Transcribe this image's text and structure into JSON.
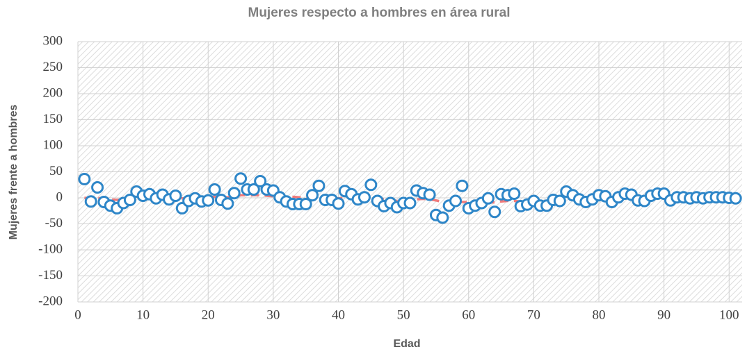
{
  "chart_data": {
    "type": "scatter",
    "title": "Mujeres respecto a hombres en área rural",
    "x_label": "Edad",
    "y_label": "Mujeres frente a hombres",
    "x": [
      1,
      2,
      3,
      4,
      5,
      6,
      7,
      8,
      9,
      10,
      11,
      12,
      13,
      14,
      15,
      16,
      17,
      18,
      19,
      20,
      21,
      22,
      23,
      24,
      25,
      26,
      27,
      28,
      29,
      30,
      31,
      32,
      33,
      34,
      35,
      36,
      37,
      38,
      39,
      40,
      41,
      42,
      43,
      44,
      45,
      46,
      47,
      48,
      49,
      50,
      51,
      52,
      53,
      54,
      55,
      56,
      57,
      58,
      59,
      60,
      61,
      62,
      63,
      64,
      65,
      66,
      67,
      68,
      69,
      70,
      71,
      72,
      73,
      74,
      75,
      76,
      77,
      78,
      79,
      80,
      81,
      82,
      83,
      84,
      85,
      86,
      87,
      88,
      89,
      90,
      91,
      92,
      93,
      94,
      95,
      96,
      97,
      98,
      99,
      100,
      101
    ],
    "series": [
      {
        "color": "#2e86c8",
        "values": [
          36,
          -7,
          20,
          -8,
          -15,
          -20,
          -10,
          -4,
          12,
          4,
          7,
          -1,
          6,
          -3,
          4,
          -20,
          -6,
          -1,
          -7,
          -5,
          16,
          -4,
          -11,
          9,
          37,
          16,
          16,
          32,
          16,
          14,
          1,
          -7,
          -12,
          -12,
          -12,
          5,
          23,
          -4,
          -4,
          -11,
          13,
          7,
          -3,
          1,
          25,
          -6,
          -16,
          -10,
          -18,
          -10,
          -10,
          14,
          9,
          6,
          -33,
          -38,
          -15,
          -6,
          23,
          -20,
          -15,
          -10,
          -1,
          -27,
          7,
          5,
          8,
          -16,
          -13,
          -6,
          -15,
          -15,
          -4,
          -6,
          12,
          5,
          -3,
          -8,
          -3,
          5,
          3,
          -8,
          1,
          8,
          6,
          -5,
          -6,
          4,
          8,
          8,
          -5,
          1,
          1,
          -1,
          1,
          -1,
          1,
          1,
          1,
          0,
          -1
        ]
      },
      {
        "color": "#f07a7a",
        "style": "dashed",
        "values": [
          0,
          -1,
          0,
          -2,
          -3,
          -4,
          -3,
          -2,
          -2,
          0,
          1,
          1,
          1,
          0,
          0,
          -1,
          -1,
          0,
          0,
          1,
          2,
          2,
          1,
          3,
          5,
          5,
          5,
          5,
          4,
          3,
          2,
          2,
          2,
          1,
          0,
          0,
          1,
          0,
          0,
          -1,
          0,
          1,
          1,
          2,
          1,
          -1,
          -3,
          -5,
          -6,
          -6,
          -5,
          -3,
          -2,
          -3,
          -5,
          -8,
          -9,
          -9,
          -8,
          -8,
          -9,
          -8,
          -8,
          -9,
          -7,
          -6,
          -6,
          -7,
          -8,
          -8,
          -8,
          -7,
          -6,
          -5,
          -4,
          -3,
          -3,
          -3,
          -2,
          -1,
          0,
          0,
          1,
          2,
          2,
          1,
          0,
          1,
          2,
          3,
          2,
          1,
          1,
          0,
          0,
          0,
          1,
          1,
          0,
          0,
          -1
        ]
      }
    ],
    "xlim": [
      0,
      102
    ],
    "xticks": [
      0,
      10,
      20,
      30,
      40,
      50,
      60,
      70,
      80,
      90,
      100
    ],
    "ylim": [
      -200,
      300
    ],
    "yticks": [
      -200,
      -150,
      -100,
      -50,
      0,
      50,
      100,
      150,
      200,
      250,
      300
    ],
    "grid": true
  }
}
